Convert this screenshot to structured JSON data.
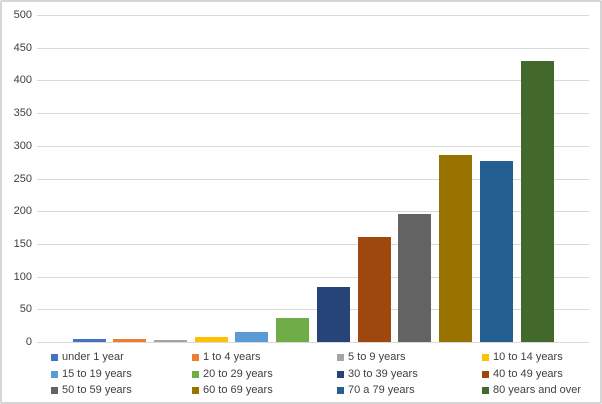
{
  "chart_data": {
    "type": "bar",
    "title": "",
    "xlabel": "",
    "ylabel": "",
    "categories": [
      "under 1 year",
      "1 to 4 years",
      "5 to 9 years",
      "10 to 14 years",
      "15 to 19 years",
      "20 to 29 years",
      "30 to 39 years",
      "40 to 49 years",
      "50 to 59 years",
      "60 to 69 years",
      "70 a 79 years",
      "80 years and over"
    ],
    "values": [
      5,
      5,
      4,
      8,
      16,
      38,
      85,
      162,
      197,
      287,
      278,
      430
    ],
    "colors": [
      "#4472C4",
      "#ED7D31",
      "#A5A5A5",
      "#FFC000",
      "#5B9BD5",
      "#70AD47",
      "#264478",
      "#9E480E",
      "#636363",
      "#997300",
      "#255E91",
      "#43682B"
    ],
    "ylim": [
      0,
      500
    ],
    "ytick_interval": 50,
    "yticks": [
      0,
      50,
      100,
      150,
      200,
      250,
      300,
      350,
      400,
      450,
      500
    ],
    "grid": true,
    "gridline_color": "#D9D9D9",
    "axis_label_color": "#404040",
    "background_color": "#FFFFFF",
    "border_color": "#D6D6D6",
    "legend_position": "bottom",
    "legend_columns": 4,
    "x_axis_labels_shown": false
  }
}
